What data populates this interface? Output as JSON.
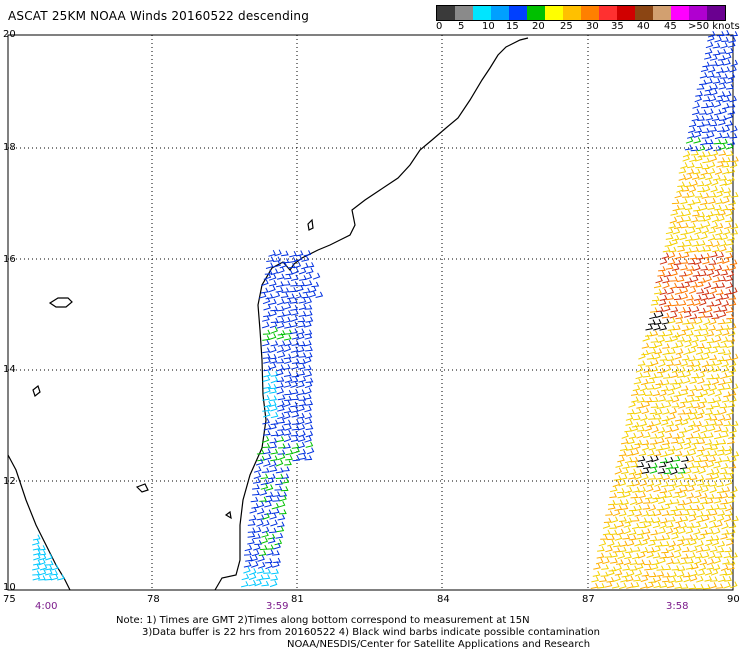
{
  "title": "ASCAT 25KM NOAA Winds 20160522 descending",
  "legend": {
    "unit_label": ">50 knots",
    "colors": [
      "#3a3a3a",
      "#8a8a8a",
      "#00e5ff",
      "#00a0ff",
      "#0040ff",
      "#00c000",
      "#ffff00",
      "#ffc000",
      "#ff8000",
      "#ff3030",
      "#d00000",
      "#8b4513",
      "#d2a070",
      "#ff00ff",
      "#b000d0",
      "#6a0090"
    ],
    "ticks": [
      "0",
      "5",
      "10",
      "15",
      "20",
      "25",
      "30",
      "35",
      "40",
      "45"
    ]
  },
  "axes": {
    "lon_labels": [
      "75",
      "78",
      "81",
      "84",
      "87",
      "90"
    ],
    "lat_labels": [
      "20",
      "18",
      "16",
      "14",
      "12",
      "10"
    ]
  },
  "pass_times": [
    "4:00",
    "3:59",
    "3:58"
  ],
  "notes": {
    "line1": "Note: 1) Times are GMT 2)Times along bottom correspond to measurement at 15N",
    "line2": "3)Data buffer is 22 hrs from 20160522 4) Black wind barbs indicate possible contamination",
    "line3": "NOAA/NESDIS/Center for Satellite Applications and Research"
  },
  "wind_colors": {
    "cyan": "#00c8ff",
    "blue": "#0030e0",
    "green": "#00c000",
    "yellow": "#f4d000",
    "orange": "#ff7a00",
    "red": "#d03010",
    "black": "#000000"
  }
}
